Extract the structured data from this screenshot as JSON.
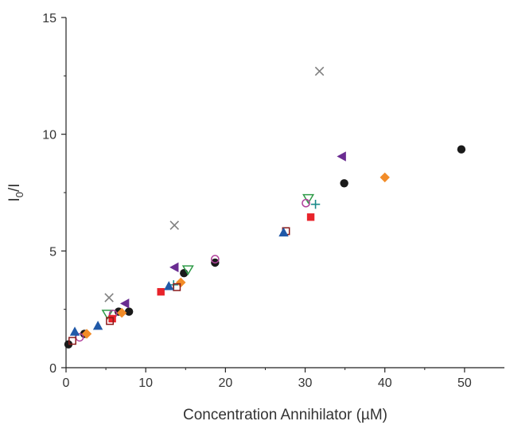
{
  "chart_data": {
    "type": "scatter",
    "xlabel": "Concentration Annihilator (µM)",
    "ylabel_main": "I",
    "ylabel_sub": "0",
    "ylabel_tail": "/I",
    "xlim": [
      0,
      55
    ],
    "ylim": [
      0,
      15
    ],
    "x_ticks": [
      0,
      10,
      20,
      30,
      40,
      50
    ],
    "y_ticks": [
      0,
      5,
      10,
      15
    ],
    "grid": false,
    "legend": "none",
    "series": [
      {
        "marker": "circle-filled",
        "color": "#1a1a1a",
        "points": [
          [
            0.3,
            1.0
          ],
          [
            2.3,
            1.45
          ],
          [
            6.6,
            2.4
          ],
          [
            7.9,
            2.4
          ],
          [
            14.8,
            4.05
          ],
          [
            18.7,
            4.5
          ],
          [
            34.9,
            7.9
          ],
          [
            49.6,
            9.35
          ]
        ]
      },
      {
        "marker": "x",
        "color": "#808080",
        "points": [
          [
            5.4,
            3.0
          ],
          [
            13.6,
            6.1
          ],
          [
            31.8,
            12.7
          ]
        ]
      },
      {
        "marker": "triangle-left-filled",
        "color": "#6a2c91",
        "points": [
          [
            7.4,
            2.75
          ],
          [
            13.6,
            4.3
          ],
          [
            34.6,
            9.05
          ]
        ]
      },
      {
        "marker": "diamond-filled",
        "color": "#f28c28",
        "points": [
          [
            2.6,
            1.45
          ],
          [
            7.0,
            2.35
          ],
          [
            14.4,
            3.65
          ],
          [
            40.0,
            8.15
          ]
        ]
      },
      {
        "marker": "triangle-down-open",
        "color": "#2e9b47",
        "points": [
          [
            5.2,
            2.3
          ],
          [
            15.3,
            4.2
          ],
          [
            30.4,
            7.25
          ]
        ]
      },
      {
        "marker": "plus",
        "color": "#1a8a8a",
        "points": [
          [
            1.2,
            1.45
          ],
          [
            13.5,
            3.55
          ],
          [
            31.3,
            7.0
          ]
        ]
      },
      {
        "marker": "circle-open",
        "color": "#b0409b",
        "points": [
          [
            1.7,
            1.3
          ],
          [
            5.9,
            2.3
          ],
          [
            18.7,
            4.65
          ],
          [
            30.1,
            7.05
          ]
        ]
      },
      {
        "marker": "square-filled",
        "color": "#e8232a",
        "points": [
          [
            5.8,
            2.1
          ],
          [
            11.9,
            3.25
          ],
          [
            30.7,
            6.45
          ]
        ]
      },
      {
        "marker": "square-open",
        "color": "#8b1a1a",
        "points": [
          [
            0.8,
            1.15
          ],
          [
            5.5,
            2.0
          ],
          [
            13.9,
            3.45
          ],
          [
            27.6,
            5.85
          ]
        ]
      },
      {
        "marker": "triangle-up-filled",
        "color": "#2059a8",
        "points": [
          [
            1.1,
            1.55
          ],
          [
            4.0,
            1.8
          ],
          [
            12.9,
            3.5
          ],
          [
            27.3,
            5.8
          ]
        ]
      }
    ]
  }
}
